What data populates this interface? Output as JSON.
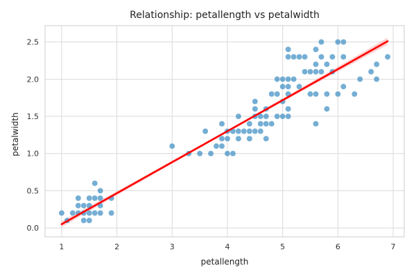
{
  "chart_data": {
    "type": "scatter",
    "title": "Relationship: petallength vs petalwidth",
    "xlabel": "petallength",
    "ylabel": "petalwidth",
    "xlim": [
      0.7,
      7.2
    ],
    "ylim": [
      -0.12,
      2.72
    ],
    "xticks": [
      1,
      2,
      3,
      4,
      5,
      6,
      7
    ],
    "yticks": [
      0.0,
      0.5,
      1.0,
      1.5,
      2.0,
      2.5
    ],
    "xtick_labels": [
      "1",
      "2",
      "3",
      "4",
      "5",
      "6",
      "7"
    ],
    "ytick_labels": [
      "0.0",
      "0.5",
      "1.0",
      "1.5",
      "2.0",
      "2.5"
    ],
    "grid": true,
    "point_color": "#3b8bc2",
    "line_color": "#ff0000",
    "band_color": "#ffb3b3",
    "points": [
      [
        1.0,
        0.2
      ],
      [
        1.1,
        0.1
      ],
      [
        1.2,
        0.2
      ],
      [
        1.3,
        0.2
      ],
      [
        1.3,
        0.3
      ],
      [
        1.3,
        0.4
      ],
      [
        1.4,
        0.1
      ],
      [
        1.4,
        0.2
      ],
      [
        1.4,
        0.3
      ],
      [
        1.5,
        0.1
      ],
      [
        1.5,
        0.2
      ],
      [
        1.5,
        0.3
      ],
      [
        1.5,
        0.4
      ],
      [
        1.6,
        0.2
      ],
      [
        1.6,
        0.4
      ],
      [
        1.6,
        0.6
      ],
      [
        1.7,
        0.2
      ],
      [
        1.7,
        0.3
      ],
      [
        1.7,
        0.4
      ],
      [
        1.7,
        0.5
      ],
      [
        1.9,
        0.2
      ],
      [
        1.9,
        0.4
      ],
      [
        3.0,
        1.1
      ],
      [
        3.3,
        1.0
      ],
      [
        3.5,
        1.0
      ],
      [
        3.6,
        1.3
      ],
      [
        3.7,
        1.0
      ],
      [
        3.8,
        1.1
      ],
      [
        3.9,
        1.1
      ],
      [
        3.9,
        1.2
      ],
      [
        3.9,
        1.4
      ],
      [
        4.0,
        1.0
      ],
      [
        4.0,
        1.2
      ],
      [
        4.0,
        1.3
      ],
      [
        4.1,
        1.0
      ],
      [
        4.1,
        1.3
      ],
      [
        4.2,
        1.2
      ],
      [
        4.2,
        1.3
      ],
      [
        4.2,
        1.5
      ],
      [
        4.3,
        1.3
      ],
      [
        4.4,
        1.2
      ],
      [
        4.4,
        1.3
      ],
      [
        4.4,
        1.4
      ],
      [
        4.5,
        1.3
      ],
      [
        4.5,
        1.5
      ],
      [
        4.5,
        1.6
      ],
      [
        4.5,
        1.7
      ],
      [
        4.6,
        1.3
      ],
      [
        4.6,
        1.4
      ],
      [
        4.6,
        1.5
      ],
      [
        4.7,
        1.2
      ],
      [
        4.7,
        1.4
      ],
      [
        4.7,
        1.5
      ],
      [
        4.7,
        1.6
      ],
      [
        4.8,
        1.4
      ],
      [
        4.8,
        1.8
      ],
      [
        4.9,
        1.5
      ],
      [
        4.9,
        1.8
      ],
      [
        4.9,
        2.0
      ],
      [
        5.0,
        1.5
      ],
      [
        5.0,
        1.7
      ],
      [
        5.0,
        1.9
      ],
      [
        5.0,
        2.0
      ],
      [
        5.1,
        1.5
      ],
      [
        5.1,
        1.6
      ],
      [
        5.1,
        1.8
      ],
      [
        5.1,
        1.9
      ],
      [
        5.1,
        2.0
      ],
      [
        5.1,
        2.3
      ],
      [
        5.1,
        2.4
      ],
      [
        5.2,
        2.0
      ],
      [
        5.2,
        2.3
      ],
      [
        5.3,
        1.9
      ],
      [
        5.3,
        2.3
      ],
      [
        5.4,
        2.1
      ],
      [
        5.4,
        2.3
      ],
      [
        5.5,
        1.8
      ],
      [
        5.5,
        2.1
      ],
      [
        5.6,
        1.4
      ],
      [
        5.6,
        1.8
      ],
      [
        5.6,
        2.1
      ],
      [
        5.6,
        2.2
      ],
      [
        5.6,
        2.4
      ],
      [
        5.7,
        2.1
      ],
      [
        5.7,
        2.3
      ],
      [
        5.7,
        2.5
      ],
      [
        5.8,
        1.6
      ],
      [
        5.8,
        1.8
      ],
      [
        5.8,
        2.2
      ],
      [
        5.9,
        2.1
      ],
      [
        5.9,
        2.3
      ],
      [
        6.0,
        1.8
      ],
      [
        6.0,
        2.5
      ],
      [
        6.1,
        1.9
      ],
      [
        6.1,
        2.3
      ],
      [
        6.1,
        2.5
      ],
      [
        6.3,
        1.8
      ],
      [
        6.4,
        2.0
      ],
      [
        6.6,
        2.1
      ],
      [
        6.7,
        2.0
      ],
      [
        6.7,
        2.2
      ],
      [
        6.9,
        2.3
      ]
    ],
    "regression": {
      "x_start": 1.0,
      "x_end": 6.9,
      "y_start": 0.05,
      "y_end": 2.51
    }
  }
}
